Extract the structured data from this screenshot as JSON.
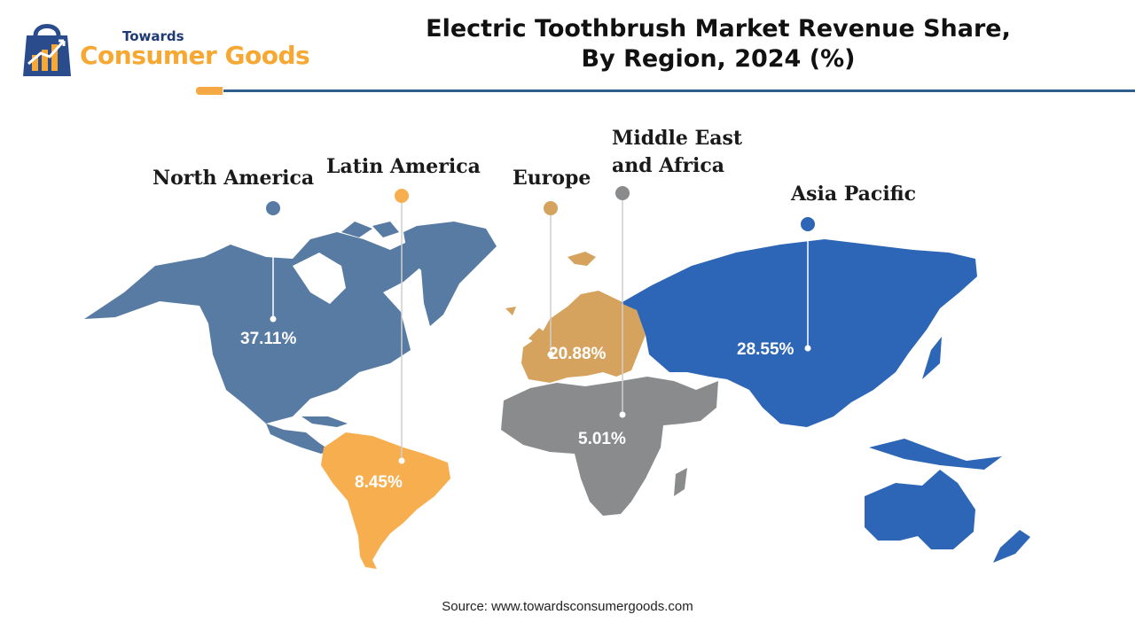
{
  "logo": {
    "line1": "Towards",
    "line2": "Consumer Goods"
  },
  "title": {
    "line1": "Electric Toothbrush Market Revenue Share,",
    "line2": "By Region, 2024 (%)"
  },
  "colors": {
    "north_america": "#587ba4",
    "latin_america": "#f7ae4f",
    "europe": "#d6a35f",
    "middle_east_africa": "#8a8b8d",
    "asia_pacific": "#2d66b6",
    "accent_orange": "#f5a843",
    "rule_blue": "#2f5d8c"
  },
  "chart_data": {
    "type": "map",
    "title": "Electric Toothbrush Market Revenue Share, By Region, 2024 (%)",
    "unit": "%",
    "regions": [
      {
        "name": "North America",
        "value": 37.11,
        "label": "37.11%"
      },
      {
        "name": "Latin America",
        "value": 8.45,
        "label": "8.45%"
      },
      {
        "name": "Europe",
        "value": 20.88,
        "label": "20.88%"
      },
      {
        "name": "Middle East and Africa",
        "value": 5.01,
        "label": "5.01%",
        "label_lines": [
          "Middle East",
          "and Africa"
        ]
      },
      {
        "name": "Asia Pacific",
        "value": 28.55,
        "label": "28.55%"
      }
    ]
  },
  "source": "Source: www.towardsconsumergoods.com"
}
